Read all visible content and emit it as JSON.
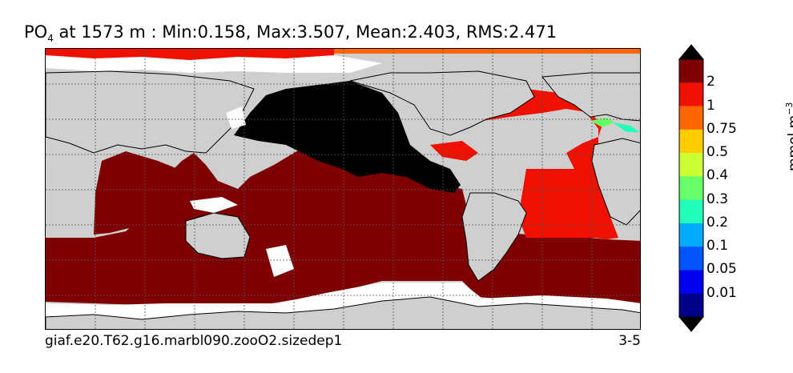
{
  "title": {
    "var": "PO",
    "sub": "4",
    "rest": "  at 1573 m : Min:0.158, Max:3.507, Mean:2.403, RMS:2.471"
  },
  "footer": {
    "case_name": "giaf.e20.T62.g16.marbl090.zooO2.sizedep1",
    "years": "3-5"
  },
  "colorbar": {
    "units_main": "mmol m",
    "units_sup": "−3",
    "levels": [
      "2",
      "1",
      "0.75",
      "0.5",
      "0.4",
      "0.3",
      "0.2",
      "0.1",
      "0.05",
      "0.01"
    ],
    "colors": [
      "#7f0000",
      "#ee1100",
      "#ff6600",
      "#ffcc00",
      "#ccff33",
      "#66ff66",
      "#22ffbb",
      "#00aaff",
      "#0055ff",
      "#0000ee",
      "#00008b"
    ],
    "over_color": "#000000",
    "under_color": "#000000"
  },
  "map": {
    "land_color": "#cfcfcf",
    "gridlines": true,
    "projection": "cylindrical"
  }
}
